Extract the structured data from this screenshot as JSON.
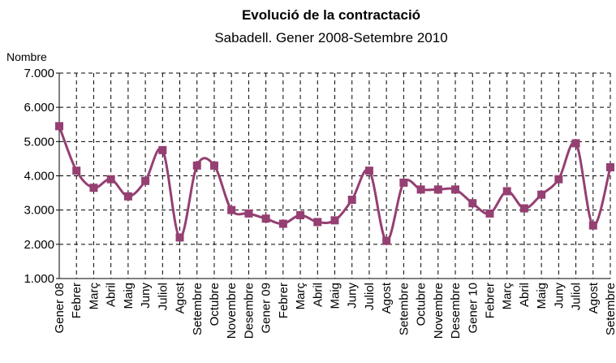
{
  "chart_data": {
    "type": "line",
    "title": "Evolució de la contractació",
    "subtitle": "Sabadell. Gener 2008-Setembre 2010",
    "y_label": "Nombre",
    "categories": [
      "Gener 08",
      "Febrer",
      "Març",
      "Abril",
      "Maig",
      "Juny",
      "Juliol",
      "Agost",
      "Setembre",
      "Octubre",
      "Novembre",
      "Desembre",
      "Gener 09",
      "Febrer",
      "Març",
      "Abril",
      "Maig",
      "Juny",
      "Juliol",
      "Agost",
      "Setembre",
      "Octubre",
      "Novembre",
      "Desembre",
      "Gener 10",
      "Febrer",
      "Març",
      "Abril",
      "Maig",
      "Juny",
      "Juliol",
      "Agost",
      "Setembre"
    ],
    "values": [
      5450,
      4150,
      3650,
      3900,
      3400,
      3850,
      4750,
      2200,
      4300,
      4300,
      3000,
      2900,
      2750,
      2600,
      2850,
      2650,
      2700,
      3300,
      4150,
      2100,
      3800,
      3600,
      3600,
      3600,
      3200,
      2900,
      3550,
      3050,
      3450,
      3900,
      4950,
      2550,
      4250
    ],
    "color": "#953f72",
    "ylim": [
      1000,
      7000
    ],
    "yticks": [
      {
        "value": 1000,
        "label": "1.000"
      },
      {
        "value": 2000,
        "label": "2.000"
      },
      {
        "value": 3000,
        "label": "3.000"
      },
      {
        "value": 4000,
        "label": "4.000"
      },
      {
        "value": 5000,
        "label": "5.000"
      },
      {
        "value": 6000,
        "label": "6.000"
      },
      {
        "value": 7000,
        "label": "7.000"
      }
    ],
    "grid": true
  }
}
